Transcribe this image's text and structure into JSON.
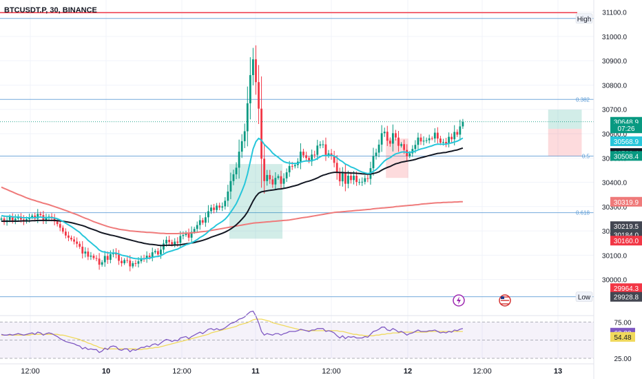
{
  "header": {
    "symbol": "BTCUSDT.P, 30, BINANCE"
  },
  "colors": {
    "up": "#089981",
    "down": "#f23645",
    "ema_fast": "#26c6da",
    "ema_slow": "#131722",
    "ema_long": "#ef7a7a",
    "level_line": "#5b9bd5",
    "rsi": "#7e57c2",
    "rsi_ma": "#f0d95c"
  },
  "chart_data": {
    "type": "candlestick",
    "ylim": [
      29860,
      31150
    ],
    "y_ticks": [
      "30000.0",
      "30100.0",
      "30200.0",
      "30300.0",
      "30400.0",
      "30500.0",
      "30600.0",
      "30700.0",
      "30800.0",
      "30900.0",
      "31000.0",
      "31100.0"
    ],
    "x_ticks": [
      "12:00",
      "10",
      "12:00",
      "11",
      "12:00",
      "12",
      "12:00",
      "13"
    ],
    "levels": [
      {
        "label": "High",
        "value": 31074,
        "kind": "tag"
      },
      {
        "label": "0.382",
        "value": 30741,
        "kind": "fib"
      },
      {
        "label": "0.5",
        "value": 30508,
        "kind": "fib"
      },
      {
        "label": "0.618",
        "value": 30275,
        "kind": "fib"
      },
      {
        "label": "Low",
        "value": 29929,
        "kind": "tag"
      }
    ],
    "resistance_top": 31098,
    "price_labels": [
      {
        "text": "30648.9",
        "value": 30648.9,
        "color": "#089981"
      },
      {
        "text": "07:26",
        "value": 30622,
        "color": "#089981"
      },
      {
        "text": "30568.9",
        "value": 30568.9,
        "color": "#26c6da"
      },
      {
        "text": "30520.4",
        "value": 30520.4,
        "color": "#131722"
      },
      {
        "text": "30508.4",
        "value": 30508.4,
        "color": "#089981"
      },
      {
        "text": "30319.9",
        "value": 30319.9,
        "color": "#ef7a7a"
      },
      {
        "text": "30219.5",
        "value": 30219.5,
        "color": "#434651"
      },
      {
        "text": "30184.1",
        "value": 30184.1,
        "color": "#089981"
      },
      {
        "text": "30184.0",
        "value": 30184.0,
        "color": "#434651"
      },
      {
        "text": "30160.0",
        "value": 30160.0,
        "color": "#f23645"
      },
      {
        "text": "29964.3",
        "value": 29964.3,
        "color": "#f23645"
      },
      {
        "text": "29928.8",
        "value": 29928.8,
        "color": "#434651"
      }
    ],
    "series": {
      "close": [
        30251,
        30236,
        30244,
        30258,
        30243,
        30251,
        30259,
        30247,
        30240,
        30248,
        30256,
        30263,
        30250,
        30270,
        30265,
        30244,
        30254,
        30259,
        30252,
        30239,
        30228,
        30213,
        30197,
        30181,
        30172,
        30165,
        30156,
        30147,
        30135,
        30107,
        30115,
        30094,
        30098,
        30088,
        30086,
        30061,
        30071,
        30097,
        30081,
        30104,
        30111,
        30103,
        30077,
        30067,
        30080,
        30078,
        30054,
        30067,
        30065,
        30075,
        30088,
        30085,
        30098,
        30092,
        30112,
        30117,
        30103,
        30123,
        30148,
        30163,
        30154,
        30145,
        30156,
        30151,
        30179,
        30183,
        30193,
        30172,
        30196,
        30208,
        30224,
        30244,
        30234,
        30256,
        30281,
        30296,
        30286,
        30304,
        30296,
        30301,
        30324,
        30362,
        30405,
        30433,
        30460,
        30526,
        30569,
        30610,
        30725,
        30841,
        30906,
        30812,
        30703,
        30497,
        30405,
        30430,
        30412,
        30391,
        30418,
        30425,
        30394,
        30416,
        30441,
        30467,
        30466,
        30471,
        30485,
        30526,
        30511,
        30500,
        30486,
        30514,
        30513,
        30551,
        30556,
        30556,
        30513,
        30519,
        30509,
        30480,
        30439,
        30404,
        30438,
        30394,
        30427,
        30409,
        30427,
        30401,
        30401,
        30402,
        30417,
        30414,
        30458,
        30508,
        30522,
        30555,
        30602,
        30608,
        30571,
        30559,
        30602,
        30584,
        30550,
        30557,
        30533,
        30507,
        30519,
        30537,
        30554,
        30584,
        30568,
        30571,
        30573,
        30581,
        30580,
        30604,
        30580,
        30563,
        30566,
        30560,
        30587,
        30577,
        30607,
        30596,
        30630,
        30649
      ],
      "ema_fast": [
        30263,
        30261,
        30260,
        30260,
        30258,
        30257,
        30257,
        30256,
        30254,
        30254,
        30254,
        30255,
        30254,
        30256,
        30257,
        30255,
        30255,
        30255,
        30255,
        30253,
        30250,
        30245,
        30239,
        30232,
        30225,
        30218,
        30210,
        30202,
        30194,
        30182,
        30173,
        30161,
        30152,
        30142,
        30133,
        30121,
        30115,
        30113,
        30110,
        30109,
        30109,
        30109,
        30105,
        30100,
        30098,
        30096,
        30091,
        30088,
        30086,
        30085,
        30085,
        30085,
        30087,
        30088,
        30091,
        30094,
        30095,
        30098,
        30104,
        30111,
        30115,
        30118,
        30122,
        30125,
        30131,
        30137,
        30143,
        30146,
        30151,
        30157,
        30164,
        30173,
        30179,
        30187,
        30197,
        30208,
        30215,
        30225,
        30232,
        30239,
        30248,
        30261,
        30277,
        30294,
        30312,
        30337,
        30364,
        30393,
        30434,
        30485,
        30537,
        30567,
        30581,
        30573,
        30556,
        30545,
        30534,
        30520,
        30511,
        30503,
        30493,
        30485,
        30481,
        30479,
        30478,
        30477,
        30478,
        30483,
        30486,
        30488,
        30487,
        30490,
        30492,
        30498,
        30505,
        30510,
        30510,
        30511,
        30511,
        30508,
        30501,
        30491,
        30485,
        30475,
        30470,
        30463,
        30459,
        30453,
        30447,
        30442,
        30439,
        30436,
        30438,
        30445,
        30452,
        30463,
        30476,
        30488,
        30496,
        30501,
        30510,
        30517,
        30520,
        30524,
        30525,
        30523,
        30523,
        30525,
        30528,
        30533,
        30537,
        30540,
        30543,
        30547,
        30550,
        30555,
        30557,
        30557,
        30557,
        30557,
        30560,
        30562,
        30566,
        30569,
        30575,
        30582
      ],
      "ema_slow": [
        30240,
        30240,
        30240,
        30240,
        30240,
        30240,
        30240,
        30241,
        30241,
        30241,
        30241,
        30242,
        30242,
        30243,
        30243,
        30243,
        30243,
        30243,
        30243,
        30243,
        30242,
        30241,
        30240,
        30238,
        30236,
        30234,
        30231,
        30228,
        30225,
        30222,
        30218,
        30213,
        30209,
        30205,
        30201,
        30196,
        30192,
        30189,
        30186,
        30183,
        30181,
        30178,
        30175,
        30172,
        30169,
        30166,
        30163,
        30160,
        30157,
        30154,
        30152,
        30149,
        30147,
        30145,
        30144,
        30143,
        30141,
        30140,
        30140,
        30141,
        30141,
        30141,
        30142,
        30142,
        30143,
        30145,
        30147,
        30148,
        30150,
        30152,
        30155,
        30158,
        30161,
        30165,
        30169,
        30174,
        30178,
        30182,
        30186,
        30190,
        30195,
        30201,
        30208,
        30216,
        30225,
        30236,
        30248,
        30261,
        30278,
        30300,
        30323,
        30342,
        30355,
        30361,
        30363,
        30365,
        30367,
        30368,
        30370,
        30372,
        30373,
        30375,
        30377,
        30380,
        30383,
        30386,
        30389,
        30394,
        30398,
        30402,
        30405,
        30409,
        30413,
        30418,
        30424,
        30429,
        30432,
        30436,
        30439,
        30441,
        30441,
        30440,
        30440,
        30439,
        30439,
        30438,
        30438,
        30437,
        30436,
        30435,
        30434,
        30433,
        30434,
        30436,
        30439,
        30443,
        30450,
        30456,
        30461,
        30465,
        30471,
        30476,
        30479,
        30483,
        30485,
        30487,
        30489,
        30491,
        30494,
        30498,
        30501,
        30504,
        30507,
        30510,
        30513,
        30516,
        30519,
        30520,
        30522,
        30523,
        30526,
        30528,
        30531,
        30533,
        30537,
        30541
      ],
      "ema_long": [
        30380,
        30375,
        30370,
        30365,
        30360,
        30355,
        30350,
        30346,
        30341,
        30336,
        30332,
        30328,
        30325,
        30321,
        30318,
        30314,
        30311,
        30308,
        30304,
        30300,
        30296,
        30292,
        30288,
        30284,
        30280,
        30275,
        30271,
        30267,
        30262,
        30257,
        30252,
        30248,
        30243,
        30238,
        30234,
        30230,
        30226,
        30222,
        30218,
        30215,
        30212,
        30210,
        30207,
        30205,
        30204,
        30202,
        30200,
        30199,
        30198,
        30197,
        30196,
        30195,
        30194,
        30194,
        30193,
        30192,
        30191,
        30190,
        30190,
        30189,
        30189,
        30189,
        30189,
        30189,
        30190,
        30190,
        30191,
        30191,
        30192,
        30193,
        30194,
        30196,
        30197,
        30198,
        30200,
        30202,
        30204,
        30206,
        30208,
        30210,
        30212,
        30214,
        30216,
        30218,
        30220,
        30222,
        30224,
        30226,
        30228,
        30230,
        30232,
        30233,
        30234,
        30235,
        30236,
        30237,
        30238,
        30239,
        30240,
        30241,
        30242,
        30243,
        30244,
        30245,
        30247,
        30249,
        30251,
        30253,
        30255,
        30256,
        30258,
        30260,
        30262,
        30264,
        30266,
        30268,
        30270,
        30272,
        30274,
        30276,
        30277,
        30278,
        30279,
        30280,
        30281,
        30282,
        30283,
        30284,
        30285,
        30286,
        30287,
        30288,
        30289,
        30291,
        30292,
        30293,
        30294,
        30295,
        30296,
        30297,
        30298,
        30300,
        30301,
        30302,
        30303,
        30304,
        30305,
        30306,
        30307,
        30308,
        30310,
        30311,
        30312,
        30313,
        30314,
        30315,
        30316,
        30316,
        30317,
        30317,
        30318,
        30318,
        30319,
        30319,
        30320,
        30320
      ],
      "rsi": [
        58,
        57,
        57,
        58,
        57,
        58,
        59,
        58,
        57,
        58,
        59,
        60,
        58,
        61,
        60,
        57,
        59,
        60,
        59,
        57,
        55,
        52,
        50,
        48,
        47,
        46,
        45,
        43,
        42,
        38,
        40,
        37,
        38,
        37,
        37,
        33,
        35,
        39,
        37,
        41,
        42,
        41,
        37,
        36,
        38,
        38,
        34,
        37,
        36,
        38,
        40,
        40,
        42,
        41,
        44,
        45,
        43,
        46,
        49,
        51,
        50,
        48,
        50,
        49,
        53,
        54,
        55,
        52,
        55,
        57,
        59,
        61,
        59,
        62,
        65,
        66,
        64,
        66,
        64,
        65,
        67,
        70,
        73,
        74,
        76,
        79,
        80,
        82,
        86,
        89,
        90,
        83,
        74,
        62,
        57,
        59,
        58,
        57,
        59,
        59,
        57,
        59,
        60,
        62,
        62,
        62,
        63,
        65,
        64,
        63,
        62,
        64,
        64,
        66,
        66,
        66,
        62,
        63,
        62,
        60,
        56,
        53,
        56,
        52,
        55,
        54,
        55,
        53,
        53,
        53,
        55,
        54,
        58,
        62,
        63,
        65,
        68,
        68,
        64,
        63,
        66,
        64,
        61,
        62,
        60,
        57,
        59,
        60,
        62,
        64,
        62,
        62,
        62,
        63,
        63,
        64,
        62,
        60,
        61,
        60,
        62,
        61,
        64,
        63,
        65,
        66
      ],
      "rsi_ma": [
        57,
        57,
        57,
        57,
        57,
        57,
        57,
        57,
        57,
        57,
        57,
        58,
        58,
        58,
        58,
        58,
        58,
        58,
        58,
        58,
        58,
        57,
        57,
        56,
        55,
        54,
        53,
        52,
        51,
        49,
        48,
        46,
        45,
        43,
        42,
        40,
        39,
        38,
        38,
        38,
        38,
        38,
        38,
        38,
        38,
        38,
        38,
        38,
        38,
        37,
        37,
        38,
        38,
        39,
        39,
        40,
        40,
        41,
        42,
        43,
        44,
        45,
        46,
        47,
        48,
        49,
        50,
        51,
        52,
        53,
        54,
        55,
        56,
        57,
        58,
        60,
        61,
        62,
        63,
        64,
        65,
        66,
        67,
        68,
        69,
        71,
        72,
        73,
        74,
        76,
        78,
        79,
        79,
        79,
        78,
        77,
        76,
        74,
        73,
        72,
        71,
        70,
        69,
        68,
        67,
        66,
        65,
        64,
        64,
        63,
        63,
        63,
        63,
        63,
        63,
        63,
        63,
        63,
        63,
        63,
        63,
        62,
        62,
        61,
        60,
        59,
        58,
        58,
        57,
        57,
        56,
        56,
        56,
        56,
        57,
        57,
        58,
        58,
        59,
        59,
        60,
        60,
        60,
        61,
        61,
        61,
        61,
        61,
        61,
        61,
        61,
        61,
        61,
        62,
        62,
        62,
        62,
        62,
        62,
        62,
        62,
        62,
        62,
        62,
        62,
        62
      ]
    },
    "positions": [
      {
        "side": "long",
        "entry": 30475,
        "target": 30474,
        "top": 30475,
        "bottom": 30168,
        "start": 82,
        "end": 101
      },
      {
        "side": "short",
        "entry": 30580,
        "top": 30580,
        "bottom": 30418,
        "start": 138,
        "end": 146
      },
      {
        "side": "long",
        "entry": 30620,
        "top": 30699,
        "bottom": 30620,
        "start": 196,
        "end": 208
      },
      {
        "side": "short",
        "entry": 30620,
        "top": 30620,
        "bottom": 30508,
        "start": 196,
        "end": 208
      }
    ],
    "rsi": {
      "ylim": [
        25,
        80
      ],
      "ticks": [
        "75.00",
        "25.00"
      ],
      "upper": 75,
      "lower": 25,
      "labels": [
        {
          "text": "60.30",
          "value": 60.3,
          "color": "#7e57c2"
        },
        {
          "text": "54.48",
          "value": 54.48,
          "color": "#f0d95c"
        }
      ]
    }
  }
}
